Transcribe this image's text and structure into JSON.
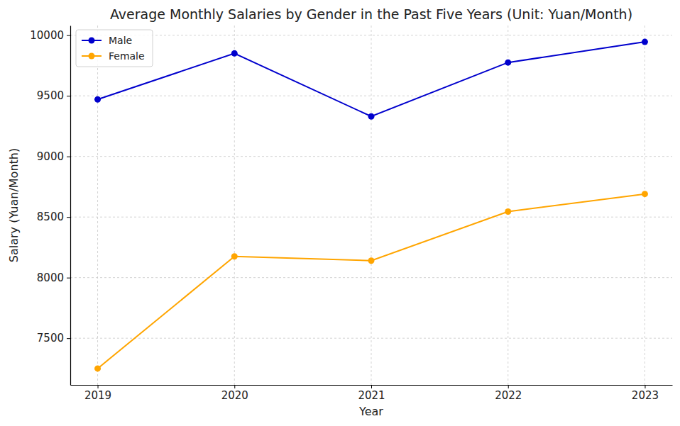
{
  "chart_data": {
    "type": "line",
    "title": "Average Monthly Salaries by Gender in the Past Five Years (Unit: Yuan/Month)",
    "x_label": "Year",
    "y_label": "Salary (Yuan/Month)",
    "x": [
      2019,
      2020,
      2021,
      2022,
      2023
    ],
    "series": [
      {
        "name": "Male",
        "color": "#0000cd",
        "marker": "circle",
        "line_style": "solid",
        "values": [
          9470,
          9850,
          9330,
          9775,
          9945
        ]
      },
      {
        "name": "Female",
        "color": "#ffa500",
        "marker": "circle",
        "line_style": "solid",
        "values": [
          7250,
          8175,
          8140,
          8545,
          8690
        ]
      }
    ],
    "xlim": [
      2018.8,
      2023.2
    ],
    "ylim": [
      7115,
      10080
    ],
    "xticks": [
      2019,
      2020,
      2021,
      2022,
      2023
    ],
    "yticks": [
      7500,
      8000,
      8500,
      9000,
      9500,
      10000
    ],
    "grid": true,
    "legend": "upper left"
  }
}
